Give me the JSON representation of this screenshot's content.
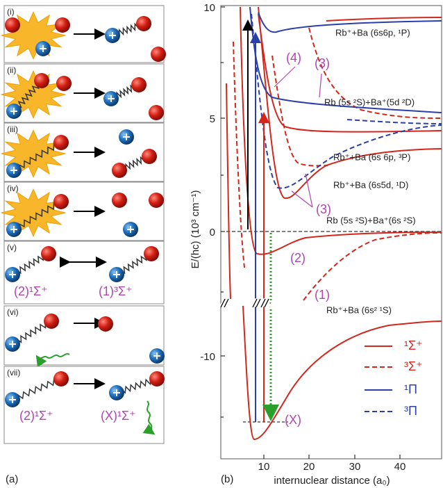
{
  "panel_a": {
    "label": "(a)",
    "panels": [
      {
        "label": "(i)"
      },
      {
        "label": "(ii)"
      },
      {
        "label": "(iii)"
      },
      {
        "label": "(iv)"
      },
      {
        "label": "(v)"
      },
      {
        "label": "(vi)"
      },
      {
        "label": "(vii)"
      }
    ],
    "state_labels": [
      "(2)¹Σ⁺",
      "(1)³Σ⁺",
      "(2)¹Σ⁺",
      "(X)¹Σ⁺"
    ]
  },
  "panel_b": {
    "label": "(b)",
    "y_axis_label": "E/(hc) (10³ cm⁻¹)",
    "x_axis_label": "internuclear distance (a₀)",
    "yticks": [
      "10",
      "5",
      "0",
      "-10"
    ],
    "xticks": [
      "10",
      "20",
      "30",
      "40"
    ],
    "asymptotes": [
      "Rb⁺+Ba (6s6p, ¹P)",
      "Rb (5s ²S)+Ba⁺(5d ²D)",
      "Rb⁺+Ba (6s 6p, ³P)",
      "Rb⁺+Ba (6s5d, ¹D)",
      "Rb (5s ²S)+Ba⁺(6s ²S)",
      "Rb⁺+Ba (6s² ¹S)"
    ],
    "curve_labels": [
      "(4)",
      "(3)",
      "(3)",
      "(2)",
      "(1)",
      "(X)"
    ],
    "legend": [
      "¹Σ⁺",
      "³Σ⁺",
      "¹Π",
      "³Π"
    ]
  }
}
